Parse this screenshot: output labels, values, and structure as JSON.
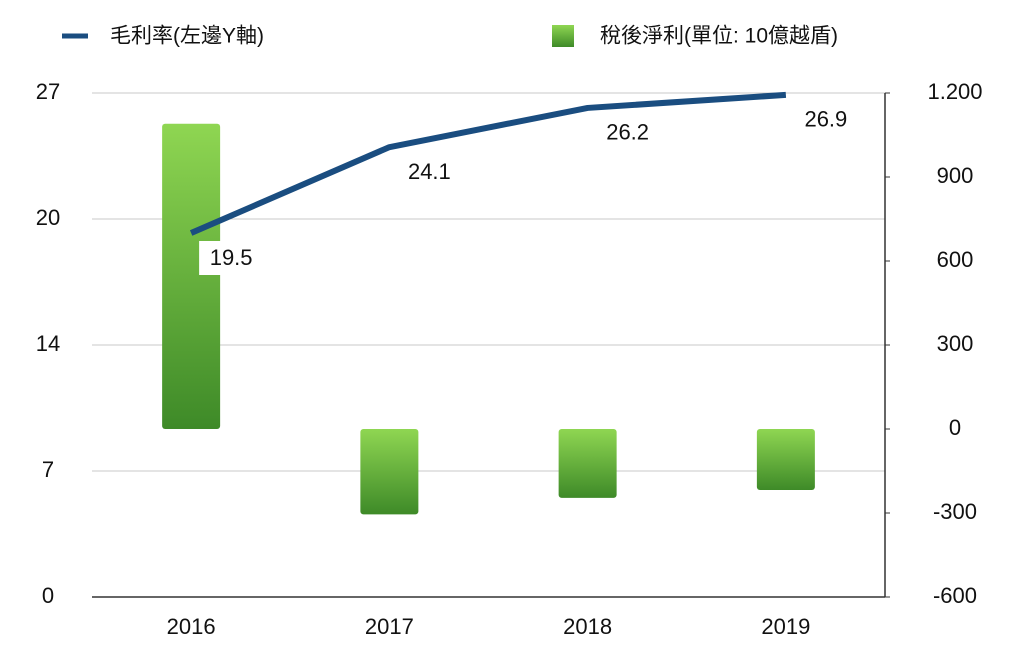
{
  "chart_data": {
    "type": "combo",
    "categories": [
      "2016",
      "2017",
      "2018",
      "2019"
    ],
    "series": [
      {
        "name": "毛利率(左邊Y軸)",
        "type": "line",
        "color": "#1a4d80",
        "values": [
          19.5,
          24.1,
          26.2,
          26.9
        ]
      },
      {
        "name": "稅後淨利(單位: 10億越盾)",
        "type": "bar",
        "axis": "y2",
        "color": "#5cb338",
        "values": [
          1090,
          -305,
          -246,
          -218
        ]
      }
    ],
    "ylim": [
      0,
      27
    ],
    "yticks": [
      0,
      {
        "value": 6.75,
        "label": "7"
      },
      {
        "value": 13.5,
        "label": "14"
      },
      {
        "value": 20.25,
        "label": "20"
      },
      27
    ],
    "y2lim": [
      -600,
      1200
    ],
    "y2ticks": [
      -600,
      -300,
      0,
      300,
      600,
      900,
      {
        "value": 1200,
        "label": "1.200"
      }
    ],
    "grid": true,
    "legend": "top"
  }
}
